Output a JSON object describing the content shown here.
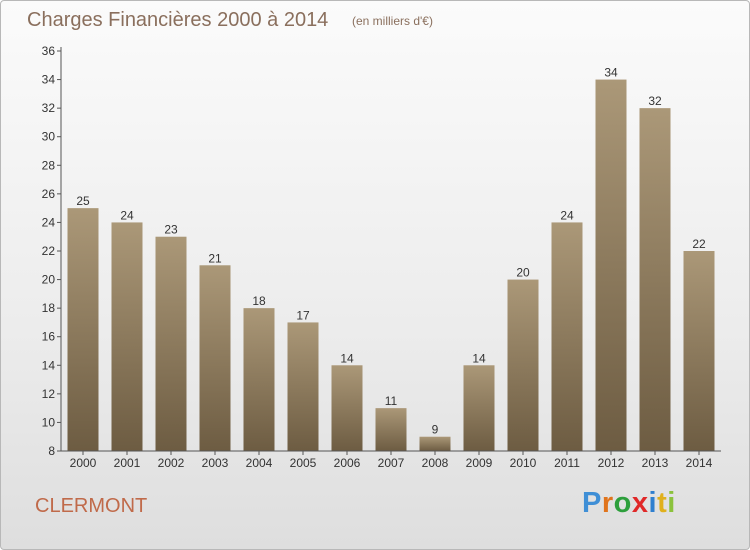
{
  "header": {
    "title": "Charges Financières 2000 à 2014",
    "subtitle": "(en milliers d'€)"
  },
  "footer": {
    "commune": "CLERMONT",
    "logo": "Proxiti"
  },
  "colors": {
    "bar_top": "#ab9878",
    "bar_bottom": "#6d5c42",
    "title": "#8a6f5d",
    "commune": "#c06a4a",
    "logo": [
      "#3f8fd6",
      "#e0741c",
      "#2d9f3c",
      "#e02828",
      "#2f7fcf",
      "#e0b01c",
      "#8bc23c"
    ]
  },
  "chart_data": {
    "type": "bar",
    "title": "Charges Financières 2000 à 2014",
    "subtitle": "(en milliers d'€)",
    "xlabel": "",
    "ylabel": "",
    "categories": [
      "2000",
      "2001",
      "2002",
      "2003",
      "2004",
      "2005",
      "2006",
      "2007",
      "2008",
      "2009",
      "2010",
      "2011",
      "2012",
      "2013",
      "2014"
    ],
    "values": [
      25,
      24,
      23,
      21,
      18,
      17,
      14,
      11,
      9,
      14,
      20,
      24,
      34,
      32,
      22
    ],
    "ylim": [
      8,
      36
    ],
    "yticks": [
      8,
      10,
      12,
      14,
      16,
      18,
      20,
      22,
      24,
      26,
      28,
      30,
      32,
      34,
      36
    ],
    "grid": false,
    "legend": "none",
    "data_labels": true
  }
}
